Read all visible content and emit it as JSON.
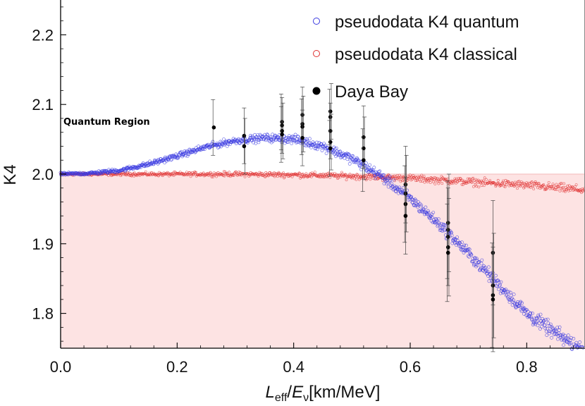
{
  "chart_data": {
    "type": "scatter",
    "xlabel": {
      "main": "L",
      "sub1": "eff",
      "slash": "/",
      "main2": "E",
      "sub2": "ν",
      "unit": "[km/MeV]"
    },
    "ylabel": "K4",
    "xlim": [
      0.0,
      0.9
    ],
    "ylim": [
      1.75,
      2.25
    ],
    "x_ticks": [
      "0.0",
      "0.2",
      "0.4",
      "0.6",
      "0.8"
    ],
    "x_tick_values": [
      0.0,
      0.2,
      0.4,
      0.6,
      0.8
    ],
    "y_ticks": [
      "1.8",
      "1.9",
      "2.0",
      "2.1",
      "2.2"
    ],
    "y_tick_values": [
      1.8,
      1.9,
      2.0,
      2.1,
      2.2
    ],
    "grid": false,
    "legend_position": "top-right",
    "region": {
      "label": "Quantum Region",
      "y_max": 2.0,
      "color": "#fde3e3"
    },
    "series": [
      {
        "name": "pseudodata K4 quantum",
        "color": "#3a3ae0",
        "marker": "open-circle",
        "x": [
          0.0,
          0.05,
          0.1,
          0.15,
          0.2,
          0.25,
          0.3,
          0.35,
          0.4,
          0.45,
          0.5,
          0.55,
          0.6,
          0.65,
          0.7,
          0.75,
          0.8,
          0.85,
          0.9
        ],
        "y": [
          2.0,
          2.001,
          2.005,
          2.014,
          2.026,
          2.039,
          2.048,
          2.052,
          2.05,
          2.04,
          2.022,
          1.997,
          1.965,
          1.928,
          1.886,
          1.843,
          1.8,
          1.771,
          1.745
        ]
      },
      {
        "name": "pseudodata K4 classical",
        "color": "#e03030",
        "marker": "open-circle",
        "x": [
          0.0,
          0.1,
          0.2,
          0.3,
          0.4,
          0.5,
          0.6,
          0.7,
          0.8,
          0.9
        ],
        "y": [
          2.0,
          2.0,
          2.0,
          2.0,
          1.999,
          1.997,
          1.994,
          1.989,
          1.984,
          1.977
        ]
      },
      {
        "name": "Daya Bay",
        "color": "#000000",
        "marker": "filled-circle",
        "points": [
          {
            "x": 0.263,
            "y": 2.067,
            "err": 0.04
          },
          {
            "x": 0.315,
            "y": 2.055,
            "err": 0.04
          },
          {
            "x": 0.315,
            "y": 2.04,
            "err": 0.04
          },
          {
            "x": 0.38,
            "y": 2.075,
            "err": 0.04
          },
          {
            "x": 0.38,
            "y": 2.07,
            "err": 0.04
          },
          {
            "x": 0.38,
            "y": 2.062,
            "err": 0.04
          },
          {
            "x": 0.38,
            "y": 2.057,
            "err": 0.04
          },
          {
            "x": 0.415,
            "y": 2.085,
            "err": 0.04
          },
          {
            "x": 0.415,
            "y": 2.072,
            "err": 0.04
          },
          {
            "x": 0.415,
            "y": 2.068,
            "err": 0.04
          },
          {
            "x": 0.415,
            "y": 2.052,
            "err": 0.04
          },
          {
            "x": 0.463,
            "y": 2.09,
            "err": 0.04
          },
          {
            "x": 0.463,
            "y": 2.082,
            "err": 0.04
          },
          {
            "x": 0.463,
            "y": 2.062,
            "err": 0.04
          },
          {
            "x": 0.463,
            "y": 2.046,
            "err": 0.04
          },
          {
            "x": 0.463,
            "y": 2.037,
            "err": 0.04
          },
          {
            "x": 0.52,
            "y": 2.053,
            "err": 0.045
          },
          {
            "x": 0.52,
            "y": 2.037,
            "err": 0.045
          },
          {
            "x": 0.52,
            "y": 2.02,
            "err": 0.045
          },
          {
            "x": 0.592,
            "y": 1.985,
            "err": 0.055
          },
          {
            "x": 0.592,
            "y": 1.972,
            "err": 0.055
          },
          {
            "x": 0.592,
            "y": 1.957,
            "err": 0.055
          },
          {
            "x": 0.592,
            "y": 1.94,
            "err": 0.055
          },
          {
            "x": 0.665,
            "y": 1.93,
            "err": 0.07
          },
          {
            "x": 0.665,
            "y": 1.92,
            "err": 0.07
          },
          {
            "x": 0.665,
            "y": 1.91,
            "err": 0.07
          },
          {
            "x": 0.665,
            "y": 1.895,
            "err": 0.07
          },
          {
            "x": 0.665,
            "y": 1.887,
            "err": 0.07
          },
          {
            "x": 0.742,
            "y": 1.887,
            "err": 0.075
          },
          {
            "x": 0.742,
            "y": 1.84,
            "err": 0.075
          },
          {
            "x": 0.742,
            "y": 1.826,
            "err": 0.075
          },
          {
            "x": 0.742,
            "y": 1.82,
            "err": 0.075
          }
        ]
      }
    ]
  }
}
